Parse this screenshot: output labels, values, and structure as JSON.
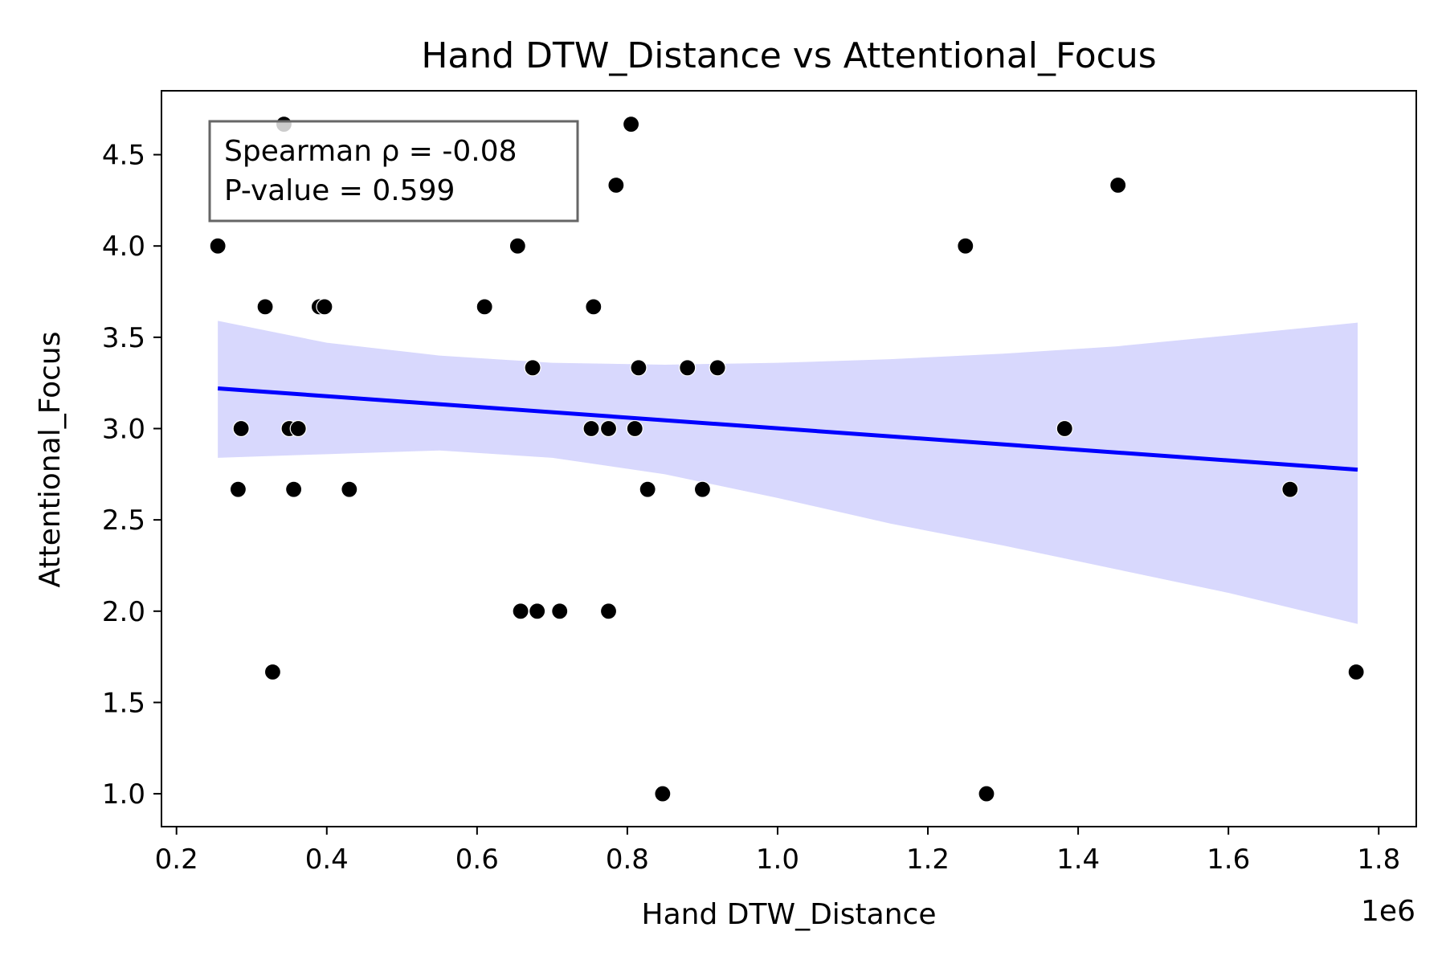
{
  "chart_data": {
    "type": "scatter",
    "title": "Hand DTW_Distance vs Attentional_Focus",
    "xlabel": "Hand DTW_Distance",
    "ylabel": "Attentional_Focus",
    "x_offset_label": "1e6",
    "xlim": [
      0.18,
      1.85
    ],
    "ylim": [
      0.82,
      4.85
    ],
    "xticks": [
      "0.2",
      "0.4",
      "0.6",
      "0.8",
      "1.0",
      "1.2",
      "1.4",
      "1.6",
      "1.8"
    ],
    "yticks": [
      "1.0",
      "1.5",
      "2.0",
      "2.5",
      "3.0",
      "3.5",
      "4.0",
      "4.5"
    ],
    "points": [
      {
        "x": 0.255,
        "y": 4.0
      },
      {
        "x": 0.343,
        "y": 4.667
      },
      {
        "x": 0.318,
        "y": 3.667
      },
      {
        "x": 0.39,
        "y": 3.667
      },
      {
        "x": 0.397,
        "y": 3.667
      },
      {
        "x": 0.286,
        "y": 3.0
      },
      {
        "x": 0.35,
        "y": 3.0
      },
      {
        "x": 0.362,
        "y": 3.0
      },
      {
        "x": 0.282,
        "y": 2.667
      },
      {
        "x": 0.356,
        "y": 2.667
      },
      {
        "x": 0.43,
        "y": 2.667
      },
      {
        "x": 0.328,
        "y": 1.667
      },
      {
        "x": 0.61,
        "y": 3.667
      },
      {
        "x": 0.654,
        "y": 4.0
      },
      {
        "x": 0.674,
        "y": 3.333
      },
      {
        "x": 0.658,
        "y": 2.0
      },
      {
        "x": 0.68,
        "y": 2.0
      },
      {
        "x": 0.71,
        "y": 2.0
      },
      {
        "x": 0.752,
        "y": 3.0
      },
      {
        "x": 0.755,
        "y": 3.667
      },
      {
        "x": 0.775,
        "y": 3.0
      },
      {
        "x": 0.775,
        "y": 2.0
      },
      {
        "x": 0.785,
        "y": 4.333
      },
      {
        "x": 0.805,
        "y": 4.667
      },
      {
        "x": 0.81,
        "y": 3.0
      },
      {
        "x": 0.815,
        "y": 3.333
      },
      {
        "x": 0.827,
        "y": 2.667
      },
      {
        "x": 0.847,
        "y": 1.0
      },
      {
        "x": 0.88,
        "y": 3.333
      },
      {
        "x": 0.9,
        "y": 2.667
      },
      {
        "x": 0.92,
        "y": 3.333
      },
      {
        "x": 1.25,
        "y": 4.0
      },
      {
        "x": 1.278,
        "y": 1.0
      },
      {
        "x": 1.382,
        "y": 3.0
      },
      {
        "x": 1.453,
        "y": 4.333
      },
      {
        "x": 1.682,
        "y": 2.667
      },
      {
        "x": 1.77,
        "y": 1.667
      }
    ],
    "regression": {
      "x": [
        0.255,
        1.772
      ],
      "y": [
        3.22,
        2.775
      ],
      "color": "#0000ff"
    },
    "confidence_band": {
      "x": [
        0.255,
        0.4,
        0.55,
        0.7,
        0.85,
        1.0,
        1.15,
        1.3,
        1.45,
        1.6,
        1.772
      ],
      "upper": [
        3.59,
        3.47,
        3.4,
        3.36,
        3.35,
        3.36,
        3.38,
        3.41,
        3.45,
        3.51,
        3.58
      ],
      "lower": [
        2.84,
        2.86,
        2.88,
        2.84,
        2.75,
        2.62,
        2.48,
        2.36,
        2.23,
        2.1,
        1.93
      ],
      "color": "#d8d8fd"
    },
    "point_color": "#000000",
    "grid": false,
    "annotation": {
      "line1": "Spearman ρ = -0.08",
      "line2": "P-value = 0.599",
      "placement": "top-left"
    }
  }
}
